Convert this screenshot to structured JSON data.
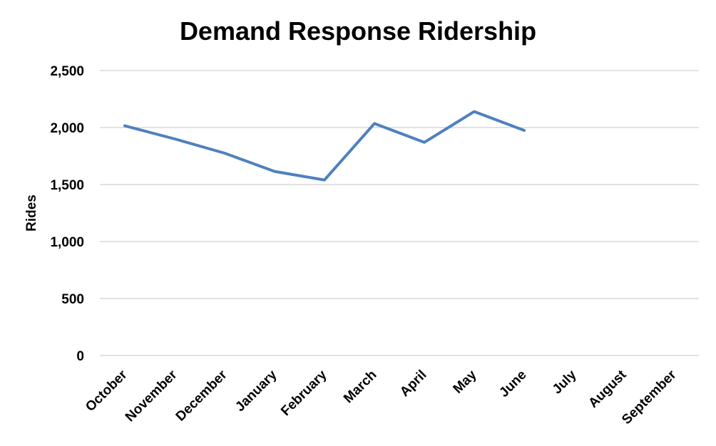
{
  "chart_data": {
    "type": "line",
    "title": "Demand Response Ridership",
    "xlabel": "",
    "ylabel": "Rides",
    "ylim": [
      0,
      2500
    ],
    "yticks": [
      0,
      500,
      1000,
      1500,
      2000,
      2500
    ],
    "ytick_labels": [
      "0",
      "500",
      "1,000",
      "1,500",
      "2,000",
      "2,500"
    ],
    "categories": [
      "October",
      "November",
      "December",
      "January",
      "February",
      "March",
      "April",
      "May",
      "June",
      "July",
      "August",
      "September"
    ],
    "series": [
      {
        "values": [
          2015,
          1900,
          1775,
          1615,
          1540,
          2035,
          1870,
          2140,
          1975,
          null,
          null,
          null
        ],
        "color": "#4f81bd"
      }
    ],
    "grid": true,
    "legend": "none"
  }
}
